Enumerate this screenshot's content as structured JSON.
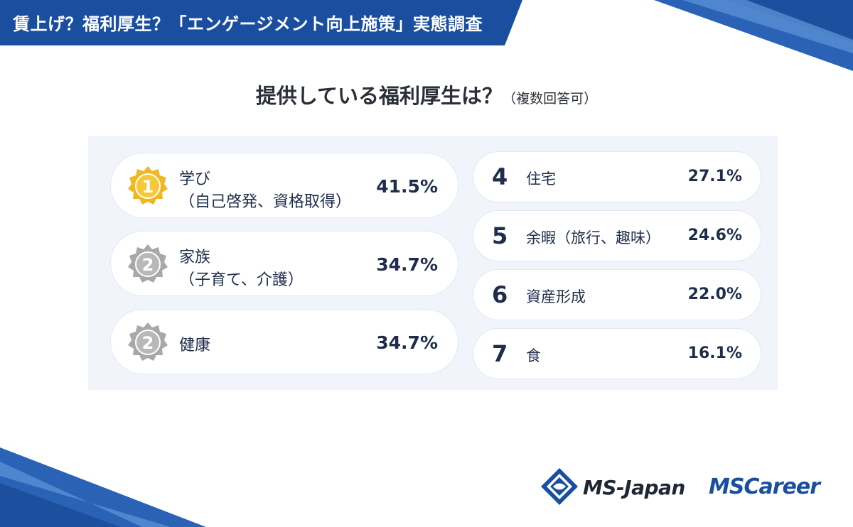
{
  "header": {
    "title": "賃上げ？福利厚生？「エンゲージメント向上施策」実態調査"
  },
  "chart": {
    "title_main": "提供している福利厚生は？",
    "title_sub": "（複数回答可）"
  },
  "chart_data": {
    "type": "table",
    "title": "提供している福利厚生は？（複数回答可）",
    "rows": [
      {
        "rank": "1",
        "label_line1": "学び",
        "label_line2": "（自己啓発、資格取得）",
        "value": 41.5,
        "value_text": "41.5%",
        "medal": "gold"
      },
      {
        "rank": "2",
        "label_line1": "家族",
        "label_line2": "（子育て、介護）",
        "value": 34.7,
        "value_text": "34.7%",
        "medal": "silver"
      },
      {
        "rank": "2",
        "label_line1": "健康",
        "label_line2": "",
        "value": 34.7,
        "value_text": "34.7%",
        "medal": "silver"
      },
      {
        "rank": "4",
        "label_line1": "住宅",
        "label_line2": "",
        "value": 27.1,
        "value_text": "27.1%"
      },
      {
        "rank": "5",
        "label_line1": "余暇（旅行、趣味）",
        "label_line2": "",
        "value": 24.6,
        "value_text": "24.6%"
      },
      {
        "rank": "6",
        "label_line1": "資産形成",
        "label_line2": "",
        "value": 22.0,
        "value_text": "22.0%"
      },
      {
        "rank": "7",
        "label_line1": "食",
        "label_line2": "",
        "value": 16.1,
        "value_text": "16.1%"
      }
    ]
  },
  "footer": {
    "logo1": "MS-Japan",
    "logo2": "MSCareer"
  },
  "colors": {
    "navy": "#1f2d4a",
    "blue": "#1a4fa0",
    "gold": "#f0b820",
    "silver": "#a8a8a8",
    "panel": "#f1f4fa"
  }
}
